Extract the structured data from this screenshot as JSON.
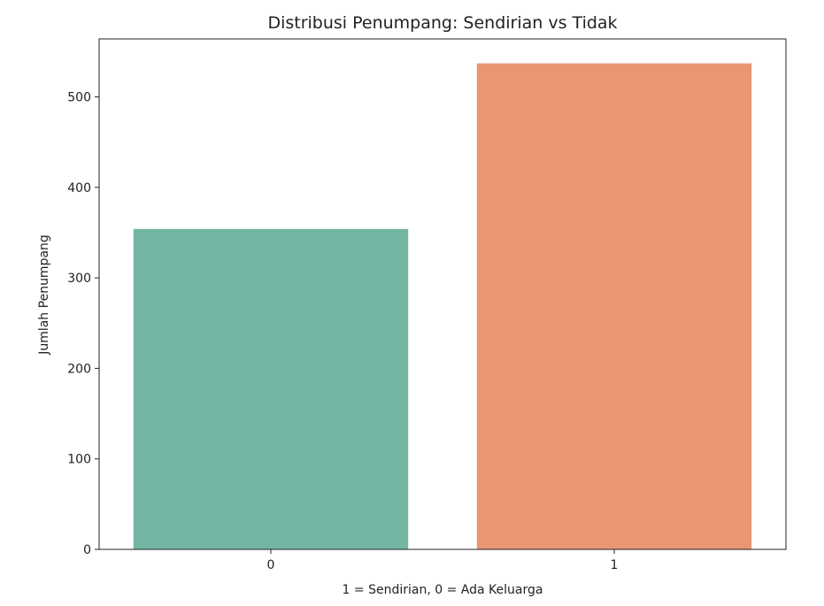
{
  "chart_data": {
    "type": "bar",
    "title": "Distribusi Penumpang: Sendirian vs Tidak",
    "xlabel": "1 = Sendirian, 0 = Ada Keluarga",
    "ylabel": "Jumlah Penumpang",
    "categories": [
      "0",
      "1"
    ],
    "values": [
      354,
      537
    ],
    "colors": [
      "#73b5a2",
      "#e89674"
    ],
    "ylim": [
      0,
      564
    ],
    "yticks": [
      0,
      100,
      200,
      300,
      400,
      500
    ],
    "grid": false,
    "legend": "none"
  }
}
